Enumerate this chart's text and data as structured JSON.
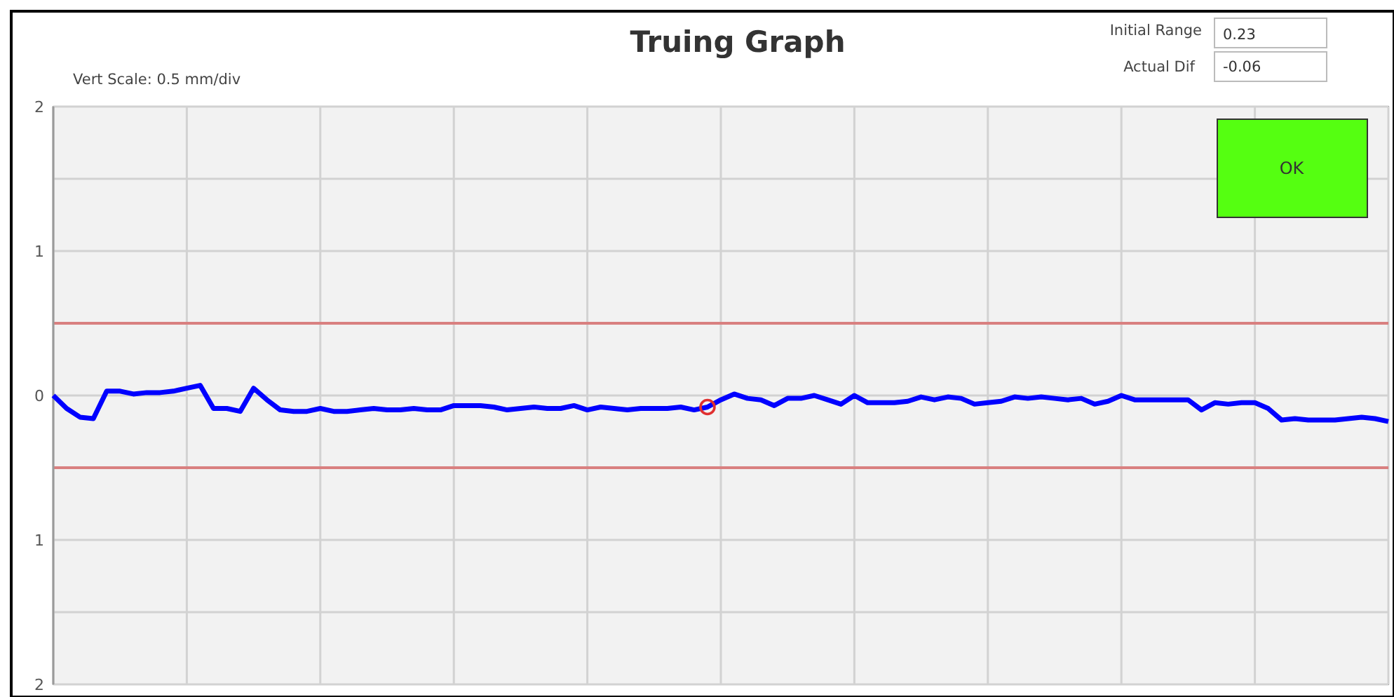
{
  "chart_data": {
    "type": "line",
    "title": "Truing Graph",
    "annotations": [
      "Vert Scale: 0.5 mm/div",
      "Initial Range",
      "0.23",
      "Actual Dif",
      "-0.06",
      "OK"
    ],
    "categories": [
      null,
      null,
      null,
      null,
      null,
      null,
      null,
      null,
      null,
      null,
      null,
      null,
      null,
      null,
      null,
      null,
      null,
      null,
      null,
      null,
      null,
      null,
      null,
      null,
      null,
      null,
      null,
      null,
      null,
      null,
      null,
      null,
      null,
      null,
      null,
      null,
      null,
      null,
      null,
      null,
      null,
      null,
      null,
      null,
      null,
      null,
      null,
      null,
      null,
      null,
      null,
      null,
      null,
      null,
      null,
      null,
      null,
      null,
      null,
      null,
      null,
      null,
      null,
      null,
      null,
      null,
      null,
      null,
      null,
      null,
      null,
      null,
      null,
      null,
      null,
      null,
      null,
      null,
      null,
      null,
      null,
      null,
      null,
      null,
      null,
      null,
      null,
      null,
      null,
      null,
      null,
      null,
      null,
      null,
      null,
      null,
      null,
      null,
      null,
      null,
      null
    ],
    "ylim": [
      -2,
      2
    ],
    "yticks": [
      {
        "value": 2,
        "label": "2"
      },
      {
        "value": 1.5,
        "label": null
      },
      {
        "value": 1,
        "label": "1"
      },
      {
        "value": 0,
        "label": "0"
      },
      {
        "value": -1,
        "label": "1"
      },
      {
        "value": -1.5,
        "label": null
      },
      {
        "value": -2,
        "label": "2"
      }
    ],
    "tick_labels": "y",
    "grid": true,
    "ref_lines": [
      {
        "axis": "y",
        "value": 0.5,
        "color": "#d98080"
      },
      {
        "axis": "y",
        "value": -0.5,
        "color": "#d98080"
      }
    ],
    "series": [
      {
        "color": "#0000ff",
        "values": [
          0,
          -0.09,
          -0.15,
          -0.16,
          0.03,
          0.03,
          0.01,
          0.02,
          0.02,
          0.03,
          0.05,
          0.07,
          -0.09,
          -0.09,
          -0.11,
          0.05,
          -0.03,
          -0.1,
          -0.11,
          -0.11,
          -0.09,
          -0.11,
          -0.11,
          -0.1,
          -0.09,
          -0.1,
          -0.1,
          -0.09,
          -0.1,
          -0.1,
          -0.07,
          -0.07,
          -0.07,
          -0.08,
          -0.1,
          -0.09,
          -0.08,
          -0.09,
          -0.09,
          -0.07,
          -0.1,
          -0.08,
          -0.09,
          -0.1,
          -0.09,
          -0.09,
          -0.09,
          -0.08,
          -0.1,
          -0.08,
          -0.03,
          0.01,
          -0.02,
          -0.03,
          -0.07,
          -0.02,
          -0.02,
          0,
          -0.03,
          -0.06,
          0,
          -0.05,
          -0.05,
          -0.05,
          -0.04,
          -0.01,
          -0.03,
          -0.01,
          -0.02,
          -0.06,
          -0.05,
          -0.04,
          -0.01,
          -0.02,
          -0.01,
          -0.02,
          -0.03,
          -0.02,
          -0.06,
          -0.04,
          0,
          -0.03,
          -0.03,
          -0.03,
          -0.03,
          -0.03,
          -0.1,
          -0.05,
          -0.06,
          -0.05,
          -0.05,
          -0.09,
          -0.17,
          -0.16,
          -0.17,
          -0.17,
          -0.17,
          -0.16,
          -0.15,
          -0.16,
          -0.18
        ]
      }
    ]
  }
}
